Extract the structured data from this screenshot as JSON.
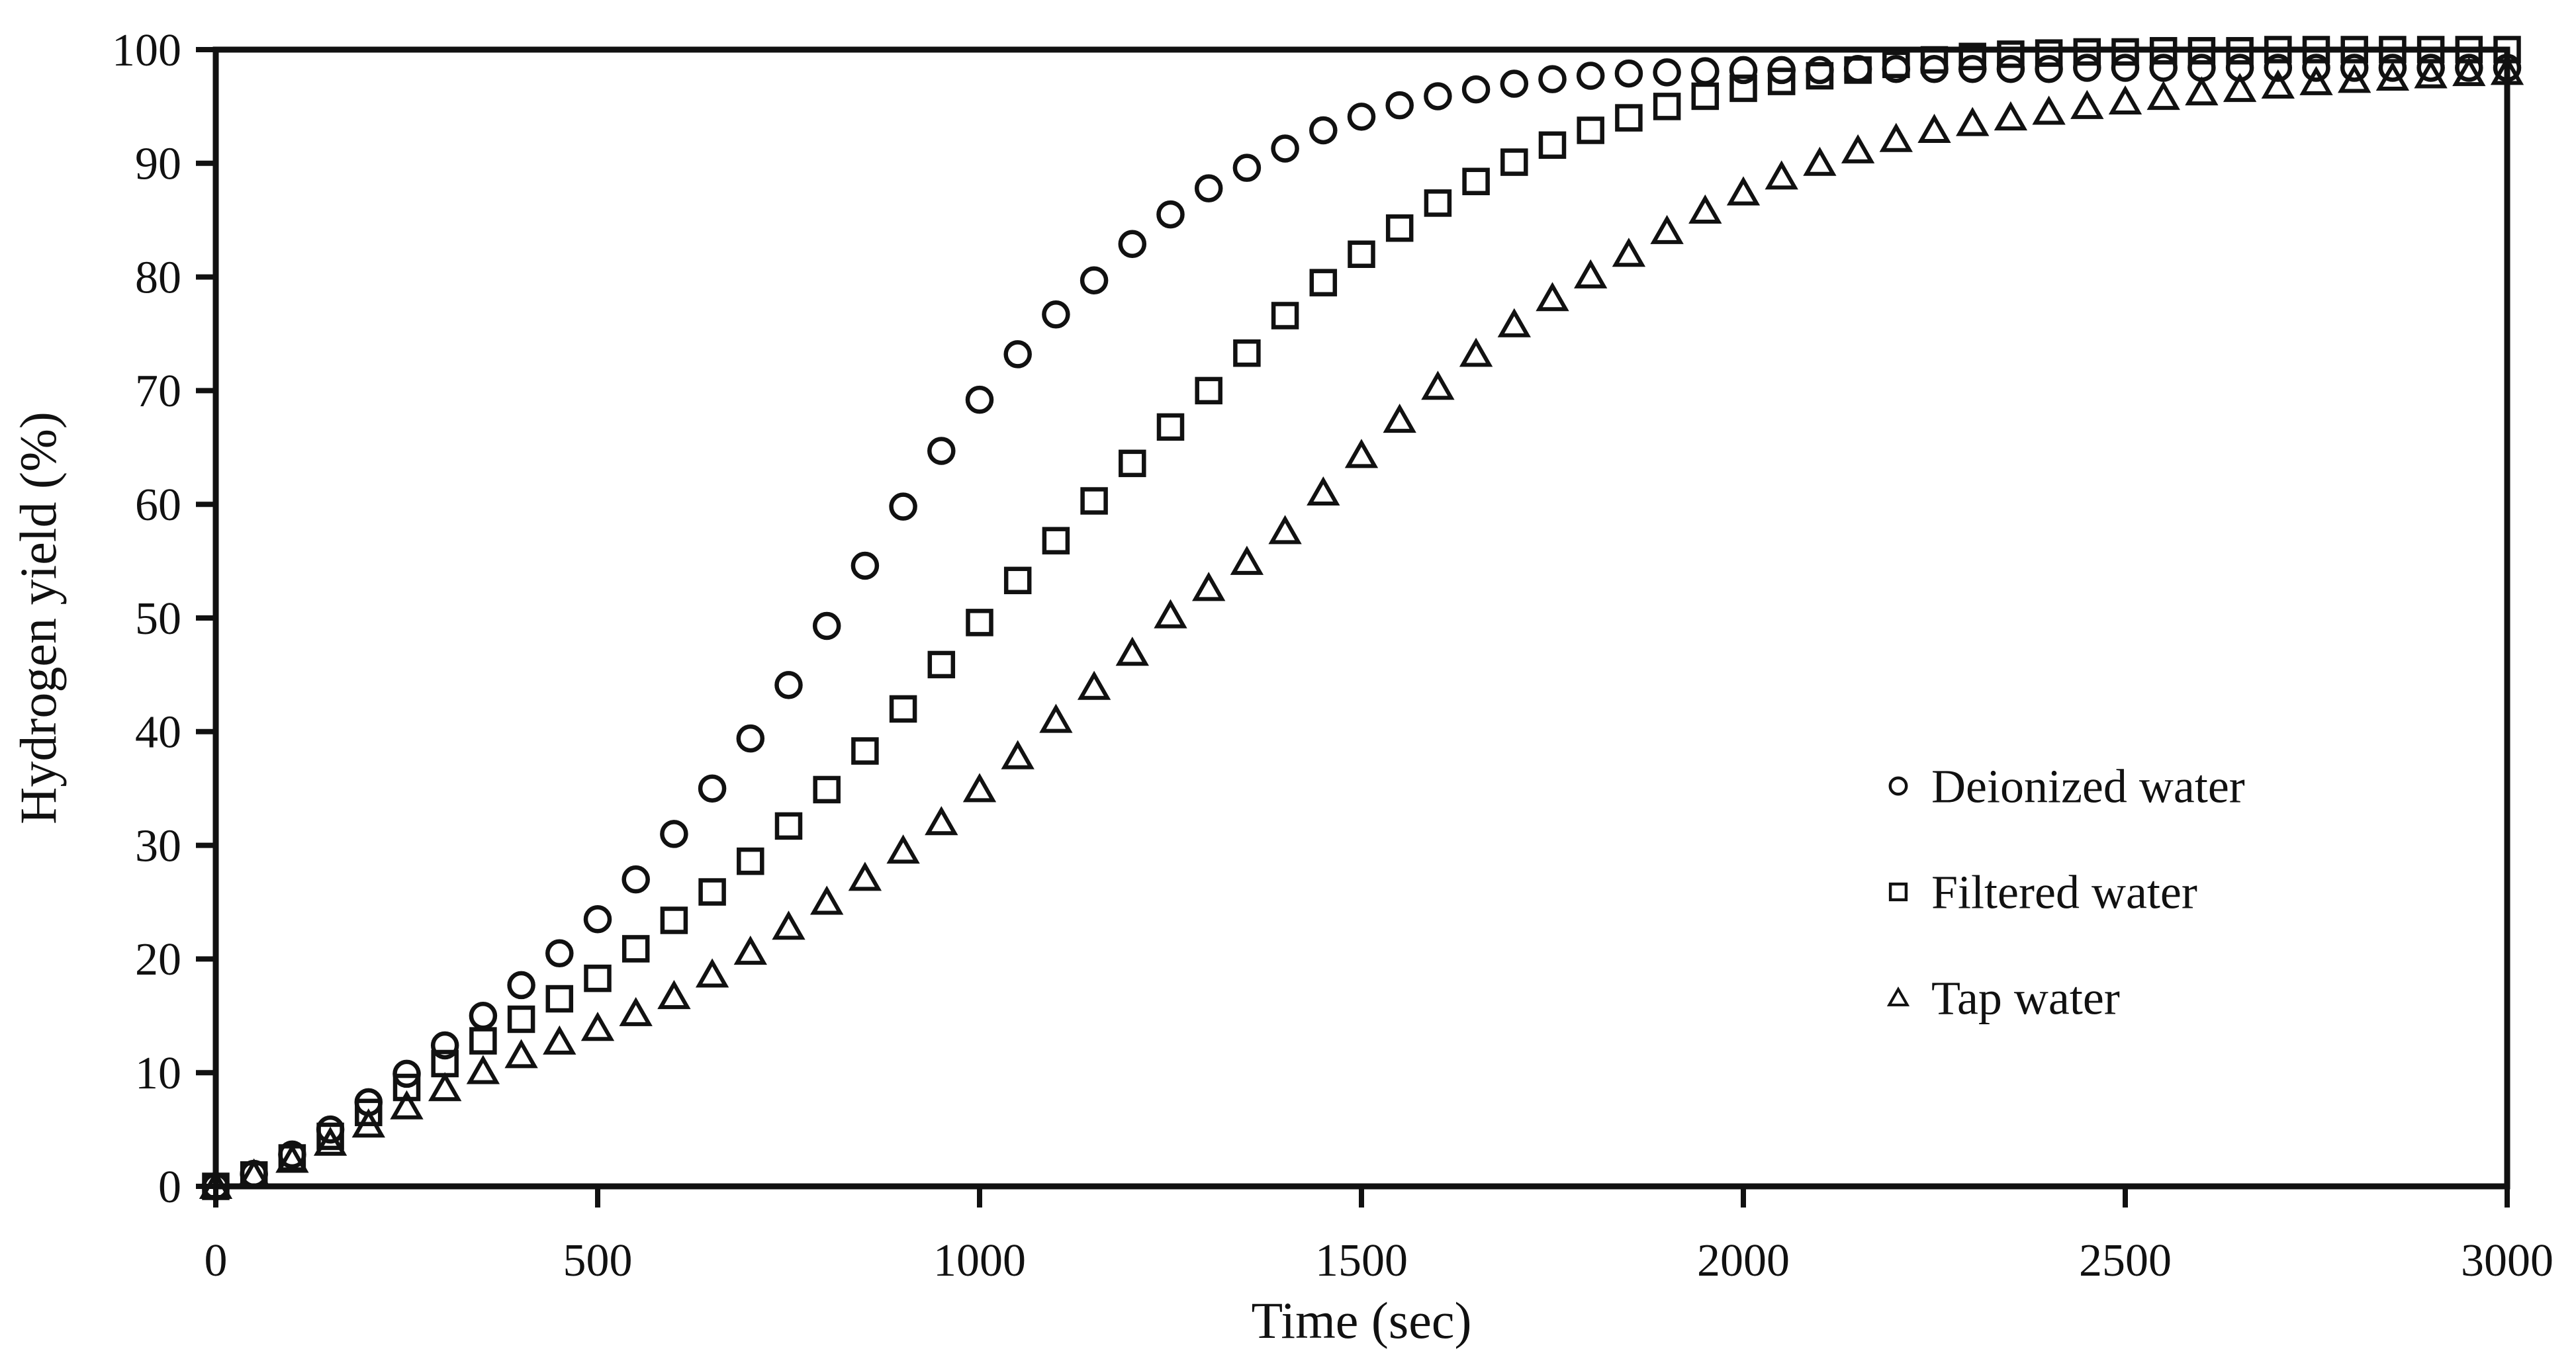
{
  "figure": {
    "background": "#ffffff",
    "ink": "#111111"
  },
  "chart_data": {
    "type": "scatter",
    "title": "",
    "xlabel": "Time (sec)",
    "ylabel": "Hydrogen yield (%)",
    "xlim": [
      0,
      3000
    ],
    "ylim": [
      0,
      100
    ],
    "x_ticks": [
      0,
      500,
      1000,
      1500,
      2000,
      2500,
      3000
    ],
    "y_ticks": [
      0,
      10,
      20,
      30,
      40,
      50,
      60,
      70,
      80,
      90,
      100
    ],
    "grid": false,
    "legend_position": "inside-right",
    "x_start": 0,
    "x_step": 50,
    "series": [
      {
        "name": "Deionized water",
        "marker": "circle",
        "values": [
          0,
          1.1,
          2.8,
          5,
          7.4,
          9.9,
          12.4,
          15,
          17.7,
          20.5,
          23.5,
          27,
          31,
          35,
          39.4,
          44.1,
          49.3,
          54.6,
          59.8,
          64.7,
          69.2,
          73.2,
          76.7,
          79.7,
          82.9,
          85.5,
          87.8,
          89.6,
          91.3,
          92.9,
          94.1,
          95.1,
          95.9,
          96.5,
          97,
          97.4,
          97.7,
          97.9,
          98,
          98.1,
          98.2,
          98.2,
          98.2,
          98.3,
          98.3,
          98.3,
          98.3,
          98.3,
          98.3,
          98.4,
          98.4,
          98.4,
          98.4,
          98.4,
          98.4,
          98.4,
          98.4,
          98.4,
          98.4,
          98.4,
          98.4
        ]
      },
      {
        "name": "Filtered water",
        "marker": "square",
        "values": [
          0,
          1,
          2.5,
          4.4,
          6.5,
          8.7,
          10.8,
          12.8,
          14.7,
          16.5,
          18.3,
          20.9,
          23.4,
          25.9,
          28.6,
          31.7,
          34.9,
          38.3,
          42,
          45.9,
          49.6,
          53.3,
          56.8,
          60.3,
          63.6,
          66.8,
          70,
          73.3,
          76.6,
          79.5,
          82,
          84.3,
          86.5,
          88.4,
          90.1,
          91.6,
          92.9,
          94,
          95,
          95.9,
          96.6,
          97.2,
          97.7,
          98.2,
          98.7,
          99.1,
          99.4,
          99.6,
          99.7,
          99.8,
          99.8,
          99.9,
          99.9,
          99.9,
          100,
          100,
          100,
          100,
          100,
          100,
          100
        ]
      },
      {
        "name": "Tap water",
        "marker": "triangle",
        "values": [
          0,
          1,
          2.3,
          3.8,
          5.4,
          7,
          8.6,
          10.1,
          11.5,
          12.7,
          13.9,
          15.2,
          16.7,
          18.6,
          20.6,
          22.8,
          25,
          27.1,
          29.5,
          32,
          34.9,
          37.8,
          41,
          43.9,
          46.9,
          50.2,
          52.6,
          54.9,
          57.6,
          61,
          64.3,
          67.4,
          70.3,
          73.2,
          75.8,
          78.1,
          80.1,
          82,
          84,
          85.8,
          87.4,
          88.8,
          90,
          91.1,
          92.1,
          92.9,
          93.5,
          94,
          94.5,
          95,
          95.4,
          95.8,
          96.2,
          96.5,
          96.8,
          97.1,
          97.3,
          97.5,
          97.7,
          97.9,
          98
        ]
      }
    ]
  }
}
